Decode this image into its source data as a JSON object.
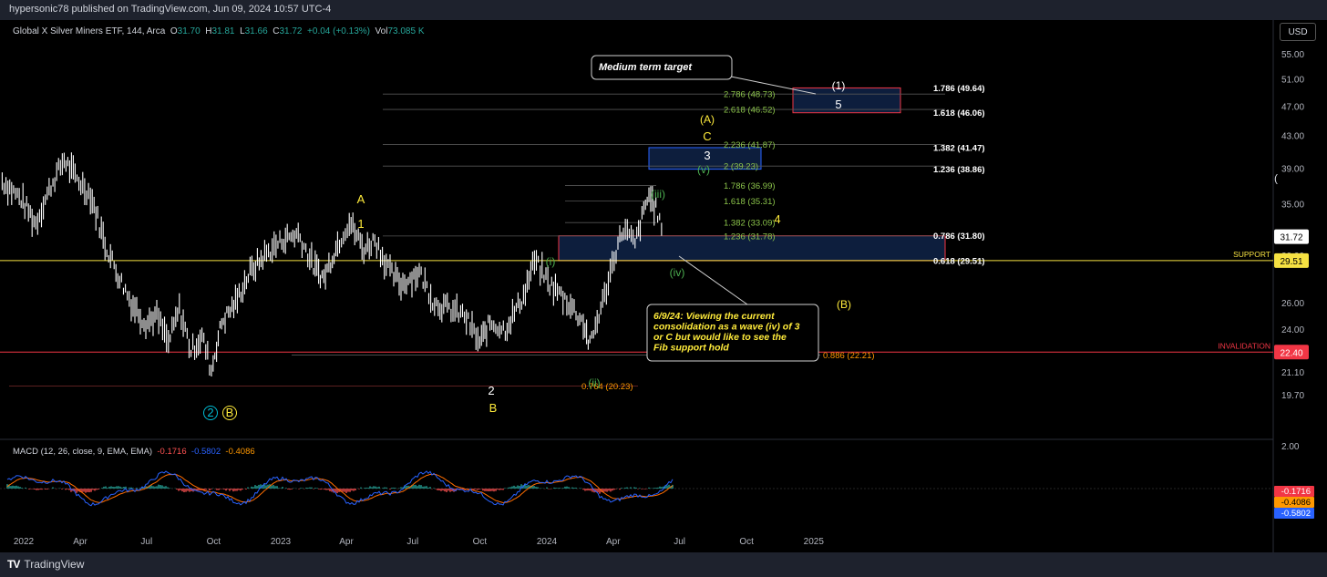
{
  "header": {
    "published_line": "hypersonic78 published on TradingView.com, Jun 09, 2024 10:57 UTC-4",
    "symbol_line": "Global X Silver Miners ETF, 144, Arca",
    "ohlc": {
      "o_label": "O",
      "o": "31.70",
      "h_label": "H",
      "h": "31.81",
      "l_label": "L",
      "l": "31.66",
      "c_label": "C",
      "c": "31.72",
      "change": "+0.04 (+0.13%)",
      "vol_label": "Vol",
      "vol": "73.085 K"
    },
    "currency_button": "USD"
  },
  "footer": {
    "brand": "TradingView",
    "logo_glyph": "TV"
  },
  "macd": {
    "label": "MACD (12, 26, close, 9, EMA, EMA)",
    "v1": "-0.1716",
    "v2": "-0.5802",
    "v3": "-0.4086",
    "axis_top": "2.00",
    "badges": [
      "-0.1716",
      "-0.4086",
      "-0.5802"
    ],
    "colors": {
      "macd": "#2962ff",
      "signal": "#ff6d00",
      "hist_pos": "#26a69a",
      "hist_neg": "#ff5252"
    }
  },
  "colors": {
    "background": "#000000",
    "candles": "#ffffff",
    "fib_box": "#0d1e3d",
    "support": "#f5e142",
    "invalidation": "#f23645",
    "wave_green": "#4caf50",
    "wave_yellow": "#ffeb3b",
    "fib_green": "#8bc34a",
    "fib_orange": "#ff9800"
  },
  "chart_data": {
    "type": "line",
    "symbol": "Global X Silver Miners ETF",
    "interval": "144",
    "exchange": "Arca",
    "y_scale": "log",
    "ylim": [
      19.0,
      56.0
    ],
    "x_tick_labels": [
      "2022",
      "Apr",
      "Jul",
      "Oct",
      "2023",
      "Apr",
      "Jul",
      "Oct",
      "2024",
      "Apr",
      "Jul",
      "Oct",
      "2025"
    ],
    "y_tick_labels": [
      "55.00",
      "51.00",
      "47.00",
      "43.00",
      "39.00",
      "35.00",
      "30.00",
      "26.00",
      "24.00",
      "21.10",
      "19.70"
    ],
    "last_price": "31.72",
    "price_path": [
      {
        "x": "2021-12-15",
        "y": 37.5
      },
      {
        "x": "2022-01-10",
        "y": 35.5
      },
      {
        "x": "2022-01-30",
        "y": 33.0
      },
      {
        "x": "2022-02-20",
        "y": 37.0
      },
      {
        "x": "2022-03-10",
        "y": 40.0
      },
      {
        "x": "2022-03-25",
        "y": 38.0
      },
      {
        "x": "2022-04-15",
        "y": 36.0
      },
      {
        "x": "2022-05-05",
        "y": 31.0
      },
      {
        "x": "2022-05-25",
        "y": 28.0
      },
      {
        "x": "2022-06-10",
        "y": 26.0
      },
      {
        "x": "2022-06-30",
        "y": 24.5
      },
      {
        "x": "2022-07-15",
        "y": 25.0
      },
      {
        "x": "2022-07-31",
        "y": 23.0
      },
      {
        "x": "2022-08-15",
        "y": 25.5
      },
      {
        "x": "2022-08-31",
        "y": 22.5
      },
      {
        "x": "2022-09-15",
        "y": 23.5
      },
      {
        "x": "2022-09-28",
        "y": 21.2
      },
      {
        "x": "2022-10-12",
        "y": 24.5
      },
      {
        "x": "2022-10-31",
        "y": 26.0
      },
      {
        "x": "2022-11-20",
        "y": 28.5
      },
      {
        "x": "2022-12-10",
        "y": 30.0
      },
      {
        "x": "2023-01-05",
        "y": 31.5
      },
      {
        "x": "2023-01-25",
        "y": 32.0
      },
      {
        "x": "2023-02-15",
        "y": 29.0
      },
      {
        "x": "2023-03-01",
        "y": 28.0
      },
      {
        "x": "2023-03-20",
        "y": 31.0
      },
      {
        "x": "2023-04-05",
        "y": 33.2
      },
      {
        "x": "2023-04-25",
        "y": 30.5
      },
      {
        "x": "2023-05-10",
        "y": 31.5
      },
      {
        "x": "2023-05-31",
        "y": 28.5
      },
      {
        "x": "2023-06-15",
        "y": 27.5
      },
      {
        "x": "2023-07-10",
        "y": 28.5
      },
      {
        "x": "2023-07-31",
        "y": 26.0
      },
      {
        "x": "2023-08-20",
        "y": 25.5
      },
      {
        "x": "2023-09-10",
        "y": 25.0
      },
      {
        "x": "2023-10-01",
        "y": 23.0
      },
      {
        "x": "2023-10-15",
        "y": 24.5
      },
      {
        "x": "2023-11-05",
        "y": 24.0
      },
      {
        "x": "2023-11-30",
        "y": 26.5
      },
      {
        "x": "2023-12-15",
        "y": 29.5
      },
      {
        "x": "2024-01-05",
        "y": 27.5
      },
      {
        "x": "2024-01-31",
        "y": 26.0
      },
      {
        "x": "2024-02-20",
        "y": 24.5
      },
      {
        "x": "2024-02-29",
        "y": 22.8
      },
      {
        "x": "2024-03-20",
        "y": 26.5
      },
      {
        "x": "2024-04-05",
        "y": 30.5
      },
      {
        "x": "2024-04-15",
        "y": 32.5
      },
      {
        "x": "2024-05-01",
        "y": 31.0
      },
      {
        "x": "2024-05-20",
        "y": 36.0
      },
      {
        "x": "2024-06-01",
        "y": 34.0
      },
      {
        "x": "2024-06-09",
        "y": 31.72
      }
    ],
    "levels": [
      {
        "label": "SUPPORT",
        "value": 29.51
      },
      {
        "label": "INVALIDATION",
        "value": 22.4
      }
    ],
    "fib_labels": [
      {
        "text": "2.786 (48.73)",
        "value": 48.73
      },
      {
        "text": "2.618 (46.52)",
        "value": 46.52
      },
      {
        "text": "2.236 (41.87)",
        "value": 41.87
      },
      {
        "text": "2 (39.23)",
        "value": 39.23
      },
      {
        "text": "1.786 (36.99)",
        "value": 36.99
      },
      {
        "text": "1.618 (35.31)",
        "value": 35.31
      },
      {
        "text": "1.382 (33.09)",
        "value": 33.09
      },
      {
        "text": "1.236 (31.78)",
        "value": 31.78
      },
      {
        "text": "1.786 (49.64)",
        "value": 49.64
      },
      {
        "text": "1.618 (46.06)",
        "value": 46.06
      },
      {
        "text": "1.382 (41.47)",
        "value": 41.47
      },
      {
        "text": "1.236 (38.86)",
        "value": 38.86
      },
      {
        "text": "0.786 (31.80)",
        "value": 31.8
      },
      {
        "text": "0.618 (29.51)",
        "value": 29.51
      },
      {
        "text": "0.886 (22.21)",
        "value": 22.21
      },
      {
        "text": "0.764 (20.23)",
        "value": 20.23
      }
    ],
    "wave_labels": [
      "A",
      "1",
      "2",
      "B",
      "(i)",
      "(ii)",
      "(iii)",
      "(iv)",
      "(v)",
      "4",
      "(A)",
      "C",
      "3",
      "(1)",
      "5",
      "(B)",
      "2",
      "B"
    ],
    "annotations": [
      "Medium term target",
      "6/9/24: Viewing the current consolidation as a wave (iv) of 3 or C but would like to see the Fib support hold"
    ],
    "price_badges": [
      "31.72",
      "29.51",
      "22.40"
    ]
  }
}
